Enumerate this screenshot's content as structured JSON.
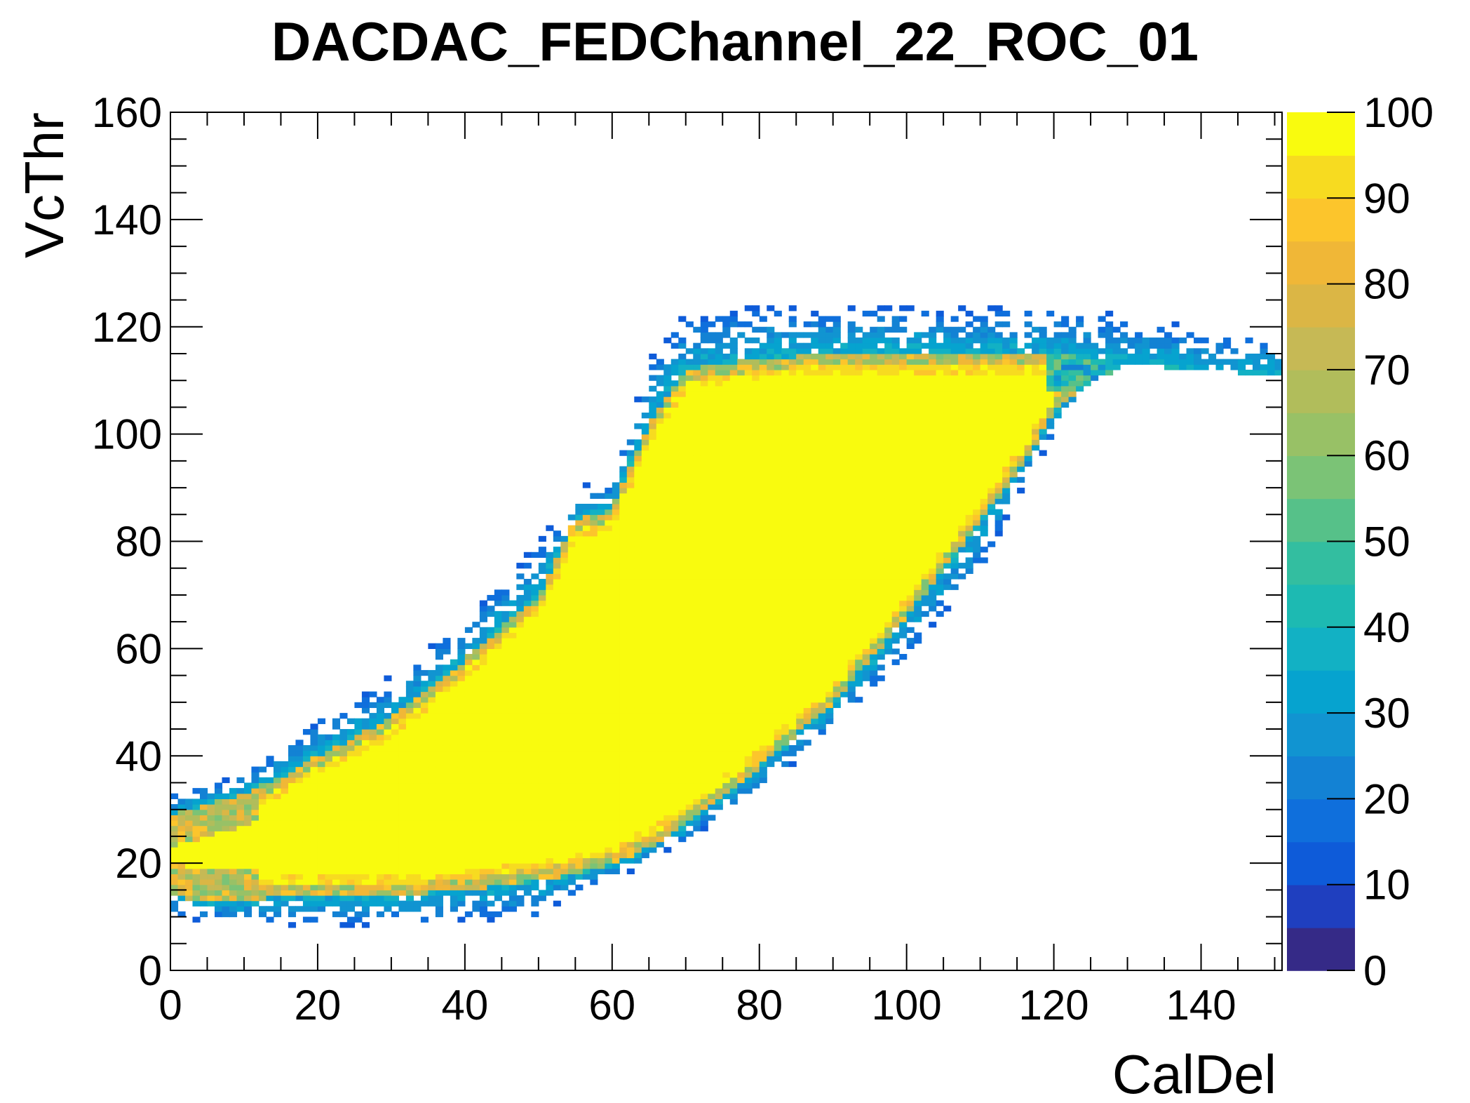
{
  "chart_data": {
    "type": "heatmap",
    "title": "DACDAC_FEDChannel_22_ROC_01",
    "xlabel": "CalDel",
    "ylabel": "VcThr",
    "xlim": [
      0,
      151
    ],
    "ylim": [
      0,
      160
    ],
    "x_ticks": [
      "0",
      "20",
      "40",
      "60",
      "80",
      "100",
      "120",
      "140"
    ],
    "y_ticks": [
      "0",
      "20",
      "40",
      "60",
      "80",
      "100",
      "120",
      "140",
      "160"
    ],
    "colorbar": {
      "zlim": [
        0,
        100
      ],
      "ticks": [
        "0",
        "10",
        "20",
        "30",
        "40",
        "50",
        "60",
        "70",
        "80",
        "90",
        "100"
      ],
      "levels": 20
    },
    "palette": [
      "#352a87",
      "#1f3fbf",
      "#0e5bd9",
      "#0f6fdc",
      "#1382d4",
      "#1194d1",
      "#06a3cf",
      "#12b1c4",
      "#1dbab2",
      "#33bea0",
      "#56c189",
      "#7bc376",
      "#98c166",
      "#b1bd5b",
      "#c6b955",
      "#dbb645",
      "#f0b737",
      "#fcc52c",
      "#f7db20",
      "#f9fb0e"
    ],
    "ridge": {
      "x": [
        0,
        5,
        10,
        15,
        20,
        30,
        40,
        50,
        55,
        60,
        65,
        70,
        80,
        90,
        100,
        110,
        115,
        120,
        125,
        130,
        140,
        150
      ],
      "upper": [
        29,
        31,
        33,
        36,
        40,
        47,
        58,
        70,
        84,
        86,
        102,
        112,
        114,
        115,
        115,
        115,
        115,
        115,
        114,
        113,
        112,
        111
      ],
      "lower": [
        14,
        13,
        13,
        14,
        14,
        14,
        15,
        17,
        18,
        20,
        23,
        27,
        38,
        50,
        66,
        84,
        93,
        104,
        110,
        113,
        112,
        111
      ],
      "min_tail": [
        10,
        9,
        9,
        8,
        8,
        8,
        9,
        9,
        14,
        17,
        20,
        24,
        33,
        44,
        58,
        73,
        88,
        100,
        112,
        118,
        118,
        118
      ],
      "max_tail": [
        33,
        35,
        37,
        42,
        47,
        55,
        66,
        80,
        90,
        92,
        114,
        123,
        124,
        124,
        124,
        124,
        124,
        124,
        123,
        122,
        120,
        118
      ]
    }
  }
}
